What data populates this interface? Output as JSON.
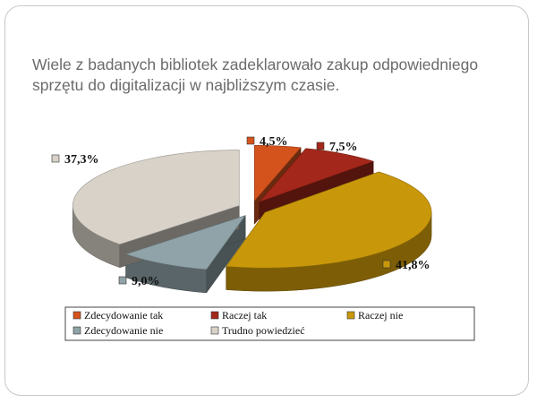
{
  "slide": {
    "title": "Wiele z badanych bibliotek zadeklarowało zakup odpowiedniego\nsprzętu do digitalizacji w najbliższym czasie."
  },
  "chart_data": {
    "type": "pie",
    "title": "",
    "three_d": true,
    "exploded": true,
    "legend_position": "bottom",
    "slices": [
      {
        "name": "Zdecydowanie tak",
        "value": 4.5,
        "label": "4,5%",
        "color": "#d4531d"
      },
      {
        "name": "Raczej tak",
        "value": 7.5,
        "label": "7,5%",
        "color": "#a3271a"
      },
      {
        "name": "Raczej nie",
        "value": 41.8,
        "label": "41,8%",
        "color": "#c9980a"
      },
      {
        "name": "Zdecydowanie nie",
        "value": 9.0,
        "label": "9,0%",
        "color": "#8fa3a8"
      },
      {
        "name": "Trudno powiedzieć",
        "value": 37.3,
        "label": "37,3%",
        "color": "#d8d2c8"
      }
    ]
  }
}
